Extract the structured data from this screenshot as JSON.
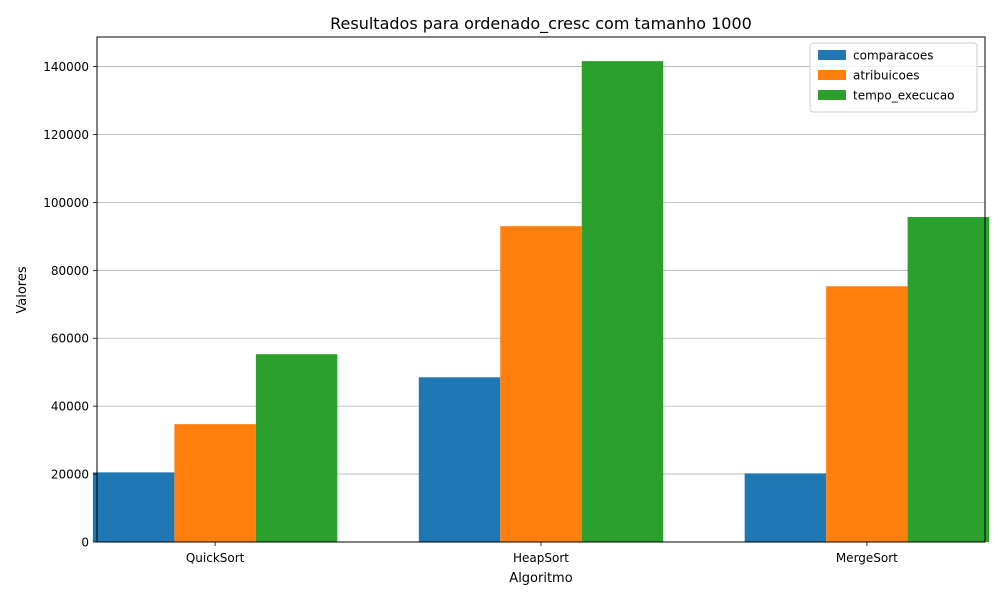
{
  "chart_data": {
    "type": "bar",
    "title": "Resultados para ordenado_cresc com tamanho 1000",
    "xlabel": "Algoritmo",
    "ylabel": "Valores",
    "categories": [
      "QuickSort",
      "HeapSort",
      "MergeSort"
    ],
    "series": [
      {
        "name": "comparacoes",
        "color": "#1f77b4",
        "values": [
          20500,
          48500,
          20200
        ]
      },
      {
        "name": "atribuicoes",
        "color": "#ff7f0e",
        "values": [
          34700,
          93000,
          75300
        ]
      },
      {
        "name": "tempo_execucao",
        "color": "#2ca02c",
        "values": [
          55300,
          141600,
          95700
        ]
      }
    ],
    "ylim": [
      0,
      148700
    ],
    "yticks": [
      0,
      20000,
      40000,
      60000,
      80000,
      100000,
      120000,
      140000
    ],
    "grid": "y",
    "legend": "top-right"
  }
}
